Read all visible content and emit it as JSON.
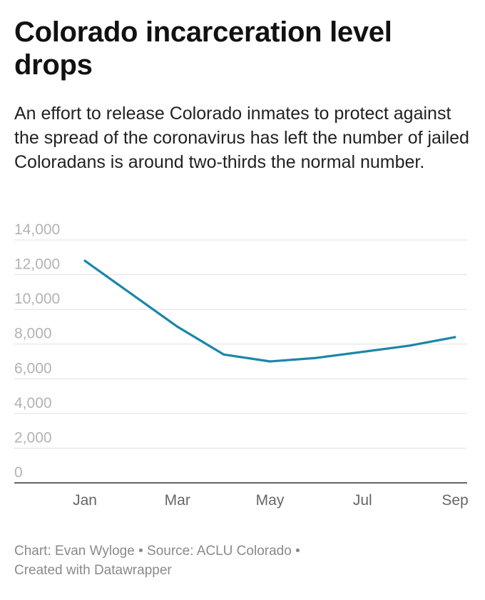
{
  "header": {
    "title": "Colorado incarceration level drops",
    "subtitle": "An effort to release Colorado inmates to protect against the spread of the coronavirus has left the number of jailed Coloradans is around two-thirds the normal number."
  },
  "footer": {
    "chart_credit": "Chart: Evan Wyloge",
    "source": "Source: ACLU Colorado",
    "tool": "Created with Datawrapper",
    "separator": "•"
  },
  "colors": {
    "line": "#1a86a8",
    "grid": "#e0e0e0",
    "axis": "#333333",
    "ytick": "#b3b3b3",
    "xtick": "#666666"
  },
  "chart_data": {
    "type": "line",
    "title": "",
    "xlabel": "",
    "ylabel": "",
    "x_ticks": [
      "Jan",
      "Mar",
      "May",
      "Jul",
      "Sep"
    ],
    "y_ticks": [
      "0",
      "2,000",
      "4,000",
      "6,000",
      "8,000",
      "10,000",
      "12,000",
      "14,000"
    ],
    "ylim": [
      0,
      14000
    ],
    "xlim": [
      "2020-01",
      "2020-09"
    ],
    "grid": true,
    "series": [
      {
        "x": [
          "2020-01",
          "2020-03",
          "2020-04",
          "2020-05",
          "2020-06",
          "2020-08",
          "2020-09"
        ],
        "values": [
          12800,
          9000,
          7400,
          7000,
          7200,
          7900,
          8400
        ]
      }
    ]
  }
}
